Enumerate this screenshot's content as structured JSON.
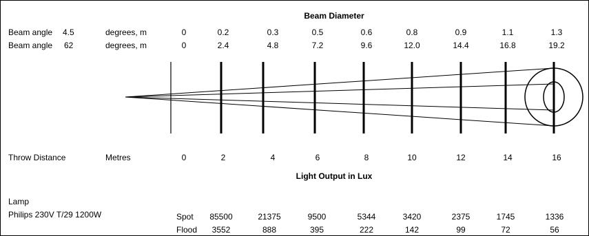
{
  "title_beam": "Beam Diameter",
  "title_lux": "Light Output in Lux",
  "beam_rows": [
    {
      "label": "Beam angle",
      "angle": "4.5",
      "unit": "degrees, m",
      "values": [
        "0",
        "0.2",
        "0.3",
        "0.5",
        "0.6",
        "0.8",
        "0.9",
        "1.1",
        "1.3"
      ]
    },
    {
      "label": "Beam angle",
      "angle": "62",
      "unit": "degrees, m",
      "values": [
        "0",
        "2.4",
        "4.8",
        "7.2",
        "9.6",
        "12.0",
        "14.4",
        "16.8",
        "19.2"
      ]
    }
  ],
  "throw": {
    "label": "Throw Distance",
    "unit": "Metres",
    "values": [
      "0",
      "2",
      "4",
      "6",
      "8",
      "10",
      "12",
      "14",
      "16"
    ]
  },
  "lamp": {
    "heading": "Lamp",
    "name": "Philips 230V T/29 1200W",
    "rows": [
      {
        "mode": "Spot",
        "values": [
          "85500",
          "21375",
          "9500",
          "5344",
          "3420",
          "2375",
          "1745",
          "1336"
        ]
      },
      {
        "mode": "Flood",
        "values": [
          "3552",
          "888",
          "395",
          "222",
          "142",
          "99",
          "72",
          "56"
        ]
      }
    ]
  },
  "colors": {
    "ink": "#000000",
    "background": "#ffffff"
  }
}
